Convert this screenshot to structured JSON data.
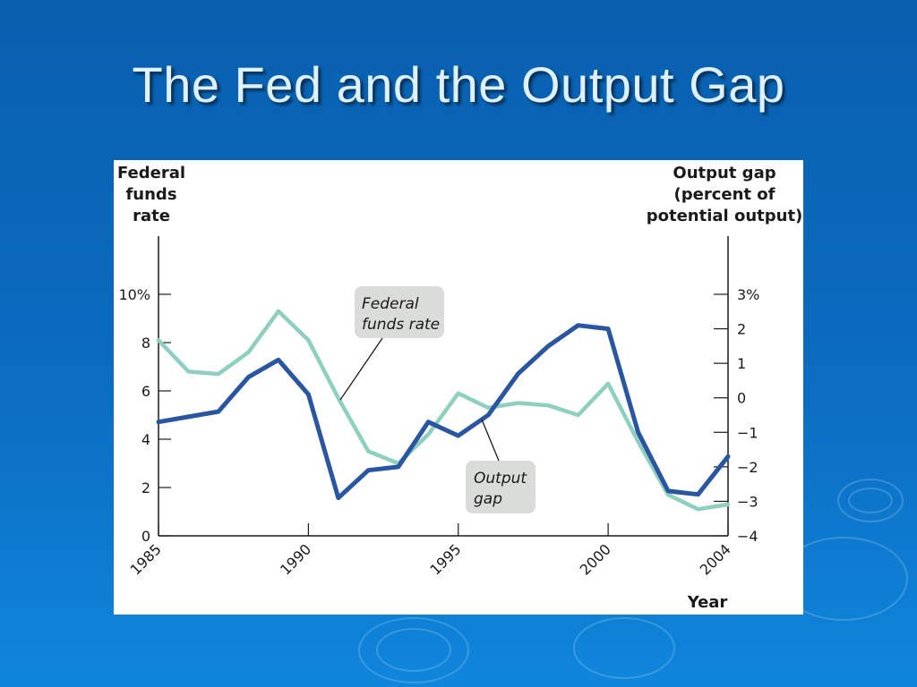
{
  "slide": {
    "title": "The Fed and the Output Gap"
  },
  "colors": {
    "background": "#0b6cc0",
    "title_text": "#dff1ff",
    "federal_funds_rate_line": "#8fcfbf",
    "output_gap_line": "#2a55a0",
    "callout_fill": "#d9dcd8"
  },
  "chart_data": {
    "type": "line",
    "title": "",
    "xlabel": "Year",
    "ylabel_left": [
      "Federal",
      "funds",
      "rate"
    ],
    "ylabel_right": [
      "Output gap",
      "(percent of",
      "potential output)"
    ],
    "x_ticks": [
      "1985",
      "1990",
      "1995",
      "2000",
      "2004"
    ],
    "y_left_ticks": [
      "0",
      "2",
      "4",
      "6",
      "8",
      "10%"
    ],
    "y_right_ticks": [
      "−4",
      "−3",
      "−2",
      "−1",
      "0",
      "1",
      "2",
      "3%"
    ],
    "xlim": [
      1985,
      2004
    ],
    "ylim_left": [
      0,
      10
    ],
    "ylim_right": [
      -4,
      3
    ],
    "series": [
      {
        "name": "Federal funds rate",
        "axis": "left",
        "x": [
          1985,
          1986,
          1987,
          1988,
          1989,
          1990,
          1991,
          1992,
          1993,
          1994,
          1995,
          1996,
          1997,
          1998,
          1999,
          2000,
          2001,
          2002,
          2003,
          2004
        ],
        "values": [
          8.1,
          6.8,
          6.7,
          7.6,
          9.3,
          8.1,
          5.7,
          3.5,
          3.0,
          4.2,
          5.9,
          5.3,
          5.5,
          5.4,
          5.0,
          6.3,
          3.9,
          1.7,
          1.1,
          1.3
        ]
      },
      {
        "name": "Output gap",
        "axis": "right",
        "x": [
          1985,
          1986,
          1987,
          1988,
          1989,
          1990,
          1991,
          1992,
          1993,
          1994,
          1995,
          1996,
          1997,
          1998,
          1999,
          2000,
          2001,
          2002,
          2003,
          2004
        ],
        "values": [
          -0.7,
          -0.55,
          -0.4,
          0.6,
          1.1,
          0.1,
          -2.9,
          -2.1,
          -2.0,
          -0.7,
          -1.1,
          -0.5,
          0.7,
          1.5,
          2.1,
          2.0,
          -1.0,
          -2.7,
          -2.8,
          -1.7
        ]
      }
    ],
    "annotations": [
      {
        "text": [
          "Federal",
          "funds rate"
        ],
        "points_to": "Federal funds rate"
      },
      {
        "text": [
          "Output",
          "gap"
        ],
        "points_to": "Output gap"
      }
    ],
    "grid": false,
    "legend": "none (inline callouts)"
  }
}
